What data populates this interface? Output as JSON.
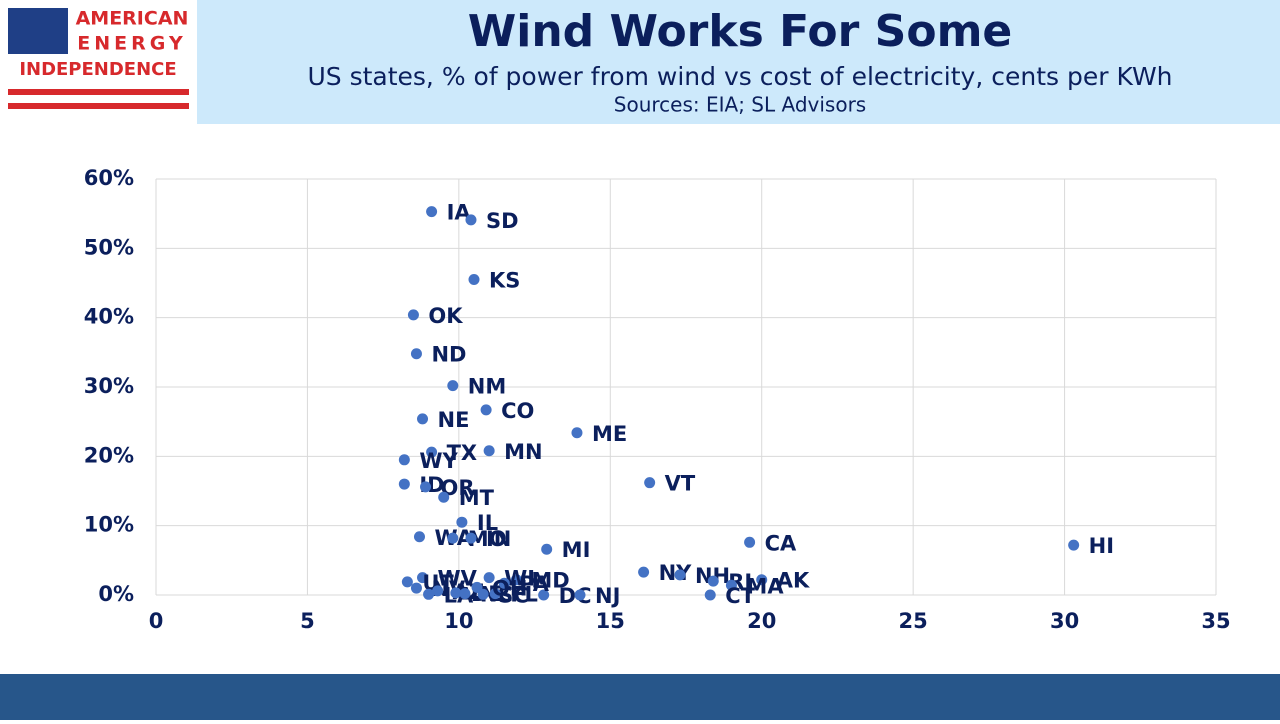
{
  "logo": {
    "line1": "AMERICAN",
    "line2": "ENERGY",
    "line3": "INDEPENDENCE"
  },
  "chart_data": {
    "type": "scatter",
    "title": "Wind Works For Some",
    "subtitle": "US states, % of power from wind vs cost of electricity, cents per KWh",
    "source": "Sources: EIA; SL Advisors",
    "color": "#4472c4",
    "grid": true,
    "xlim": [
      0,
      35
    ],
    "xticks": [
      0,
      5,
      10,
      15,
      20,
      25,
      30,
      35
    ],
    "ylim": [
      0,
      60
    ],
    "yticks": [
      {
        "value": 0,
        "label": "0%"
      },
      {
        "value": 10,
        "label": "10%"
      },
      {
        "value": 20,
        "label": "20%"
      },
      {
        "value": 30,
        "label": "30%"
      },
      {
        "value": 40,
        "label": "40%"
      },
      {
        "value": 50,
        "label": "50%"
      },
      {
        "value": 60,
        "label": "60%"
      }
    ],
    "labels": [
      "IA",
      "SD",
      "KS",
      "OK",
      "ND",
      "NM",
      "CO",
      "NE",
      "ME",
      "MN",
      "TX",
      "WY",
      "VT",
      "ID",
      "OR",
      "MT",
      "IL",
      "WA",
      "MO",
      "IN",
      "CA",
      "HI",
      "MI",
      "NY",
      "NH",
      "RI",
      "AK",
      "MA",
      "CT",
      "DC",
      "NJ",
      "MD",
      "WV",
      "WI",
      "UT",
      "NV",
      "AZ",
      "LA",
      "DE",
      "NC",
      "SC",
      "FL",
      "PA",
      "OH"
    ],
    "x": [
      9.1,
      10.4,
      10.5,
      8.5,
      8.6,
      9.8,
      10.9,
      8.8,
      13.9,
      11.0,
      9.1,
      8.2,
      16.3,
      8.2,
      8.9,
      9.5,
      10.1,
      8.7,
      9.8,
      10.4,
      19.6,
      30.3,
      12.9,
      16.1,
      17.3,
      18.4,
      20.0,
      19.0,
      18.3,
      12.8,
      14.0,
      11.9,
      8.8,
      11.0,
      8.3,
      8.6,
      9.3,
      9.0,
      9.9,
      10.2,
      10.8,
      11.2,
      11.5,
      10.6
    ],
    "values": [
      55.3,
      54.1,
      45.5,
      40.4,
      34.8,
      30.2,
      26.7,
      25.4,
      23.4,
      20.8,
      20.6,
      19.5,
      16.2,
      16.0,
      15.6,
      14.1,
      10.5,
      8.4,
      8.2,
      8.2,
      7.6,
      7.2,
      6.6,
      3.3,
      2.9,
      2.0,
      2.2,
      1.4,
      0.0,
      0.0,
      0.0,
      2.2,
      2.5,
      2.5,
      1.9,
      1.0,
      0.6,
      0.1,
      0.3,
      0.2,
      0.1,
      0.2,
      1.7,
      1.1
    ]
  }
}
